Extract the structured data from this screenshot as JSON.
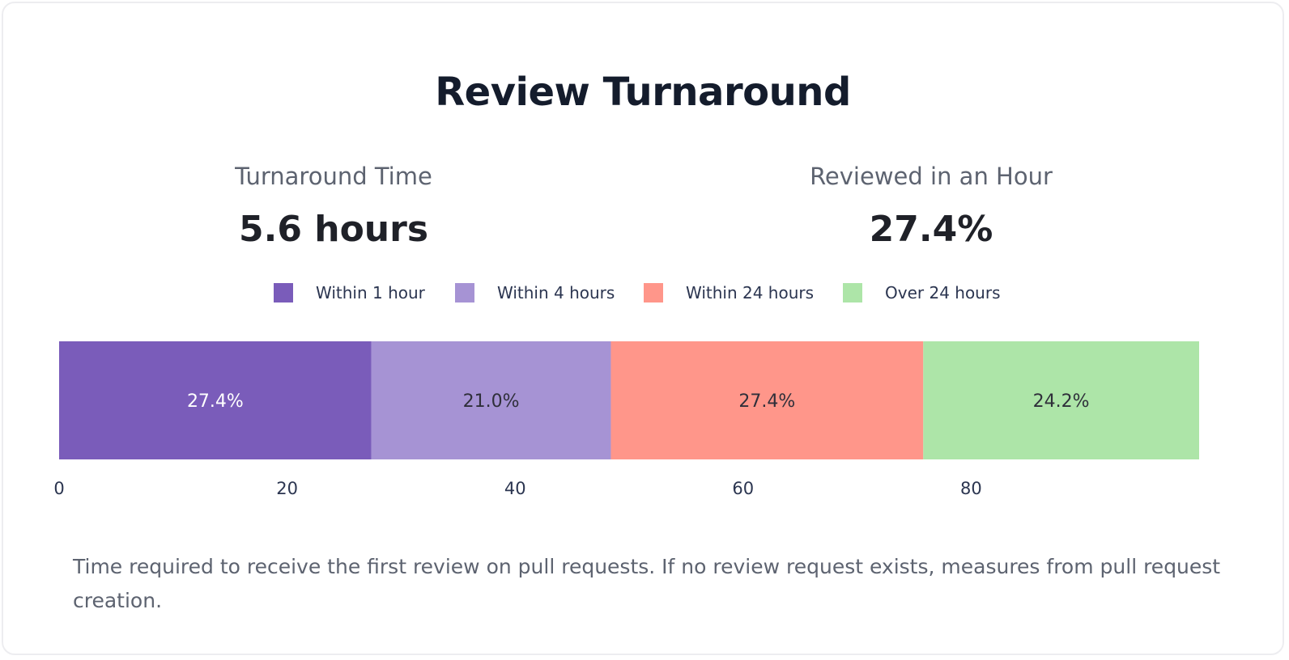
{
  "title": "Review Turnaround",
  "stats": [
    {
      "label": "Turnaround Time",
      "value": "5.6 hours"
    },
    {
      "label": "Reviewed in an Hour",
      "value": "27.4%"
    }
  ],
  "description": "Time required to receive the first review on pull requests. If no review request exists, measures from pull request creation.",
  "chart_data": {
    "type": "bar",
    "orientation": "horizontal-stacked",
    "series": [
      {
        "name": "Within 1 hour",
        "value": 27.4,
        "label": "27.4%",
        "color": "#7a5cba",
        "label_color": "#ffffff"
      },
      {
        "name": "Within 4 hours",
        "value": 21.0,
        "label": "21.0%",
        "color": "#a693d4",
        "label_color": "#2f2f3a"
      },
      {
        "name": "Within 24 hours",
        "value": 27.4,
        "label": "27.4%",
        "color": "#ff968a",
        "label_color": "#2f2f3a"
      },
      {
        "name": "Over 24 hours",
        "value": 24.2,
        "label": "24.2%",
        "color": "#ade5a8",
        "label_color": "#2f2f3a"
      }
    ],
    "xlim": [
      0,
      100
    ],
    "xticks": [
      0,
      20,
      40,
      60,
      80
    ],
    "legend_placement": "top-center",
    "grid": false
  }
}
